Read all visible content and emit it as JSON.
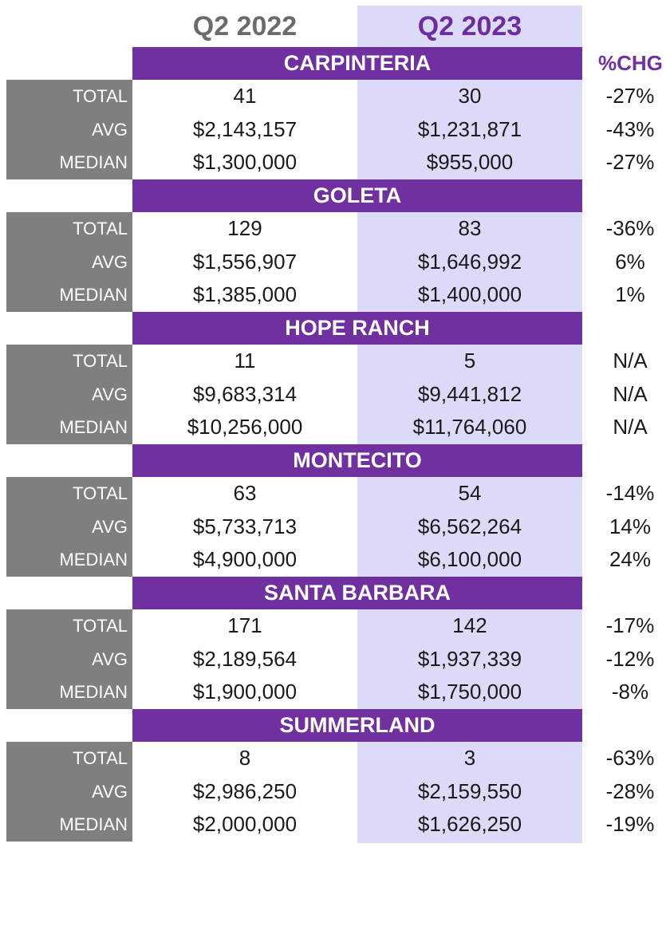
{
  "headers": {
    "q2_2022": "Q2 2022",
    "q2_2023": "Q2 2023",
    "pct_change": "%CHG"
  },
  "colors": {
    "purple": "#7030a0",
    "gray": "#7f7f7f",
    "lavender": "#dcdaf9"
  },
  "regions": [
    {
      "name": "CARPINTERIA",
      "rows": [
        {
          "label": "TOTAL",
          "q2_2022": "41",
          "q2_2023": "30",
          "chg": "-27%"
        },
        {
          "label": "AVG",
          "q2_2022": "$2,143,157",
          "q2_2023": "$1,231,871",
          "chg": "-43%"
        },
        {
          "label": "MEDIAN",
          "q2_2022": "$1,300,000",
          "q2_2023": "$955,000",
          "chg": "-27%"
        }
      ]
    },
    {
      "name": "GOLETA",
      "rows": [
        {
          "label": "TOTAL",
          "q2_2022": "129",
          "q2_2023": "83",
          "chg": "-36%"
        },
        {
          "label": "AVG",
          "q2_2022": "$1,556,907",
          "q2_2023": "$1,646,992",
          "chg": "6%"
        },
        {
          "label": "MEDIAN",
          "q2_2022": "$1,385,000",
          "q2_2023": "$1,400,000",
          "chg": "1%"
        }
      ]
    },
    {
      "name": "HOPE RANCH",
      "rows": [
        {
          "label": "TOTAL",
          "q2_2022": "11",
          "q2_2023": "5",
          "chg": "N/A"
        },
        {
          "label": "AVG",
          "q2_2022": "$9,683,314",
          "q2_2023": "$9,441,812",
          "chg": "N/A"
        },
        {
          "label": "MEDIAN",
          "q2_2022": "$10,256,000",
          "q2_2023": "$11,764,060",
          "chg": "N/A"
        }
      ]
    },
    {
      "name": "MONTECITO",
      "rows": [
        {
          "label": "TOTAL",
          "q2_2022": "63",
          "q2_2023": "54",
          "chg": "-14%"
        },
        {
          "label": "AVG",
          "q2_2022": "$5,733,713",
          "q2_2023": "$6,562,264",
          "chg": "14%"
        },
        {
          "label": "MEDIAN",
          "q2_2022": "$4,900,000",
          "q2_2023": "$6,100,000",
          "chg": "24%"
        }
      ]
    },
    {
      "name": "SANTA BARBARA",
      "rows": [
        {
          "label": "TOTAL",
          "q2_2022": "171",
          "q2_2023": "142",
          "chg": "-17%"
        },
        {
          "label": "AVG",
          "q2_2022": "$2,189,564",
          "q2_2023": "$1,937,339",
          "chg": "-12%"
        },
        {
          "label": "MEDIAN",
          "q2_2022": "$1,900,000",
          "q2_2023": "$1,750,000",
          "chg": "-8%"
        }
      ]
    },
    {
      "name": "SUMMERLAND",
      "rows": [
        {
          "label": "TOTAL",
          "q2_2022": "8",
          "q2_2023": "3",
          "chg": "-63%"
        },
        {
          "label": "AVG",
          "q2_2022": "$2,986,250",
          "q2_2023": "$2,159,550",
          "chg": "-28%"
        },
        {
          "label": "MEDIAN",
          "q2_2022": "$2,000,000",
          "q2_2023": "$1,626,250",
          "chg": "-19%"
        }
      ]
    }
  ]
}
